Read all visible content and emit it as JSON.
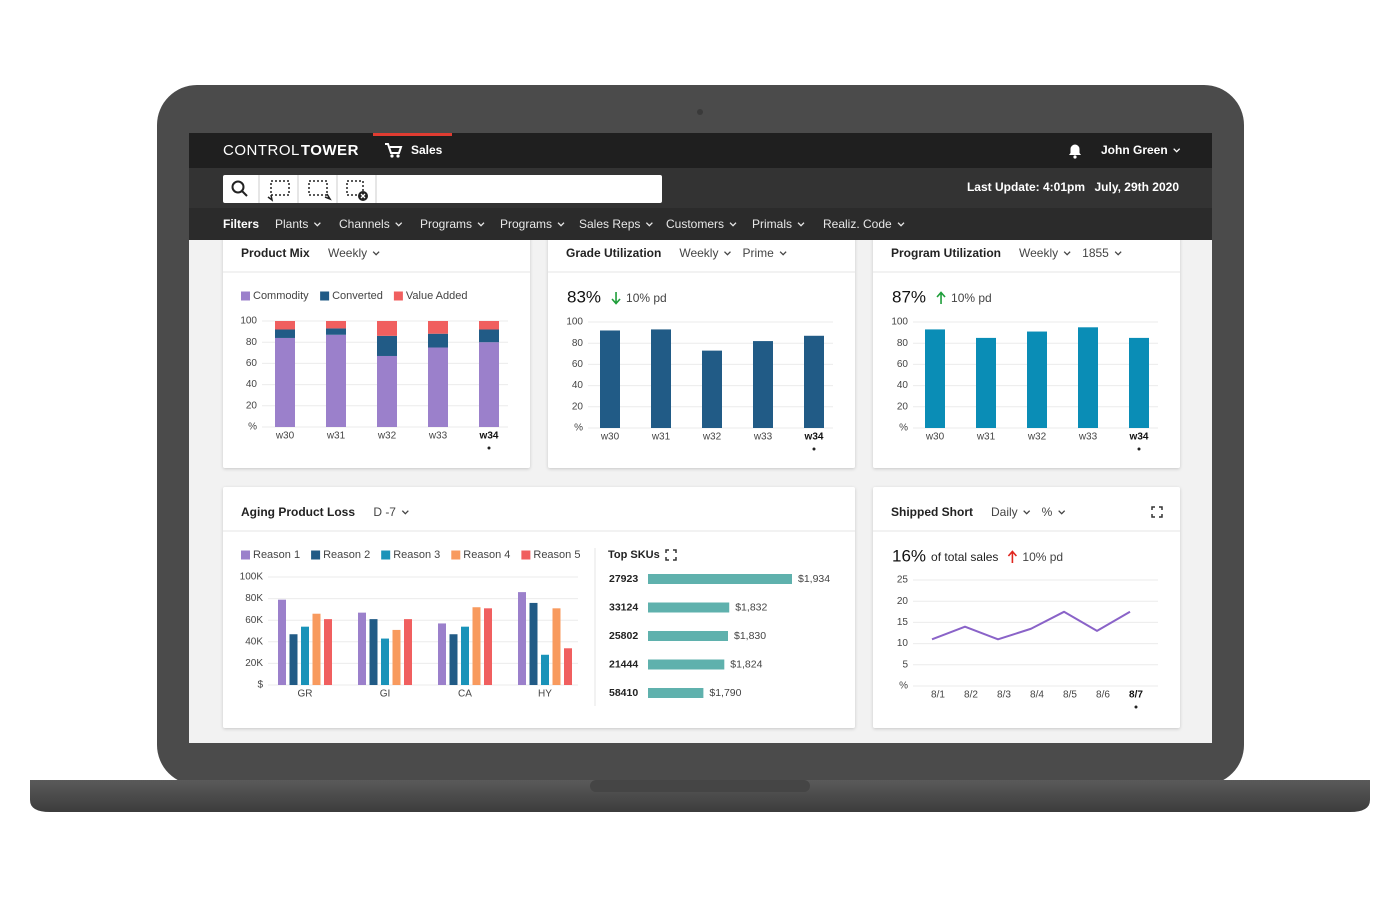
{
  "header": {
    "brand_light": "CONTROL",
    "brand_bold": "TOWER",
    "tab": "Sales",
    "user": "John Green"
  },
  "toolbar": {
    "last_update": "Last Update: 4:01pm",
    "date": "July, 29th 2020"
  },
  "filters": {
    "label": "Filters",
    "items": [
      "Plants",
      "Channels",
      "Programs",
      "Programs",
      "Sales Reps",
      "Customers",
      "Primals",
      "Realiz. Code"
    ]
  },
  "panels": [
    {
      "title": "Product Mix",
      "controls": [
        "Weekly"
      ],
      "chart": {
        "type": "stacked_bar",
        "categories": [
          "w30",
          "w31",
          "w32",
          "w33",
          "w34"
        ],
        "series": [
          {
            "name": "Commodity",
            "color": "#9b80cb",
            "values": [
              84,
              87,
              67,
              75,
              80
            ]
          },
          {
            "name": "Converted",
            "color": "#215b86",
            "values": [
              8,
              6,
              19,
              13,
              12
            ]
          },
          {
            "name": "Value Added",
            "color": "#f05f5f",
            "values": [
              8,
              7,
              14,
              12,
              8
            ]
          }
        ],
        "ylim": [
          0,
          100
        ],
        "yticks": [
          {
            "value": 0,
            "label": "%"
          },
          20,
          40,
          60,
          80,
          100
        ],
        "grid": true
      }
    },
    {
      "title": "Grade Utilization",
      "controls": [
        "Weekly",
        "Prime"
      ],
      "kpi": "83%",
      "change": "10% pd",
      "trend": "down",
      "trend_color": "#1e9e3a",
      "chart": {
        "type": "bar",
        "categories": [
          "w30",
          "w31",
          "w32",
          "w33",
          "w34"
        ],
        "values": [
          92,
          93,
          73,
          82,
          87
        ],
        "color": "#215b86",
        "ylim": [
          0,
          100
        ],
        "yticks": [
          {
            "value": 0,
            "label": "%"
          },
          20,
          40,
          60,
          80,
          100
        ],
        "grid": true
      }
    },
    {
      "title": "Program Utilization",
      "controls": [
        "Weekly",
        "1855"
      ],
      "kpi": "87%",
      "change": "10% pd",
      "trend": "up",
      "trend_color": "#1e9e3a",
      "chart": {
        "type": "bar",
        "categories": [
          "w30",
          "w31",
          "w32",
          "w33",
          "w34"
        ],
        "values": [
          93,
          85,
          91,
          95,
          85
        ],
        "color": "#0a8db6",
        "ylim": [
          0,
          100
        ],
        "yticks": [
          {
            "value": 0,
            "label": "%"
          },
          20,
          40,
          60,
          80,
          100
        ],
        "grid": true
      }
    },
    {
      "title": "Aging Product Loss",
      "controls": [
        "D -7"
      ],
      "chart": {
        "type": "grouped_bar",
        "categories": [
          "GR",
          "GI",
          "CA",
          "HY"
        ],
        "series": [
          {
            "name": "Reason 1",
            "color": "#9b80cb",
            "values": [
              79000,
              67000,
              57000,
              86000
            ]
          },
          {
            "name": "Reason 2",
            "color": "#215b86",
            "values": [
              47000,
              61000,
              47000,
              76000
            ]
          },
          {
            "name": "Reason 3",
            "color": "#1a93b9",
            "values": [
              54000,
              43000,
              54000,
              28000
            ]
          },
          {
            "name": "Reason 4",
            "color": "#f89a5e",
            "values": [
              66000,
              51000,
              72000,
              71000
            ]
          },
          {
            "name": "Reason 5",
            "color": "#f05f5f",
            "values": [
              61000,
              61000,
              71000,
              34000
            ]
          }
        ],
        "ylim": [
          0,
          100000
        ],
        "yticks": [
          {
            "value": 0,
            "label": "$"
          },
          {
            "value": 20000,
            "label": "20K"
          },
          {
            "value": 40000,
            "label": "40K"
          },
          {
            "value": 60000,
            "label": "60K"
          },
          {
            "value": 80000,
            "label": "80K"
          },
          {
            "value": 100000,
            "label": "100K"
          }
        ],
        "grid": true
      },
      "sku_chart": {
        "type": "hbar",
        "title": "Top SKUs",
        "categories": [
          "27923",
          "33124",
          "25802",
          "21444",
          "58410"
        ],
        "values": [
          1934,
          1832,
          1830,
          1824,
          1790
        ],
        "value_labels": [
          "$1,934",
          "$1,832",
          "$1,830",
          "$1,824",
          "$1,790"
        ],
        "color": "#5fb1ad",
        "xlim": [
          1700,
          1960
        ]
      }
    },
    {
      "title": "Shipped Short",
      "controls": [
        "Daily",
        "%"
      ],
      "kpi": "16%",
      "kpi_note": "of total sales",
      "change": "10% pd",
      "trend": "up",
      "trend_color": "#e0261f",
      "chart": {
        "type": "line",
        "categories": [
          "8/1",
          "8/2",
          "8/3",
          "8/4",
          "8/5",
          "8/6",
          "8/7"
        ],
        "values": [
          11,
          14,
          11,
          13.5,
          17.5,
          13,
          17.5
        ],
        "color": "#8a63c8",
        "ylim": [
          0,
          25
        ],
        "yticks": [
          {
            "value": 0,
            "label": "%"
          },
          5,
          10,
          15,
          20,
          25
        ],
        "grid": true
      }
    }
  ]
}
